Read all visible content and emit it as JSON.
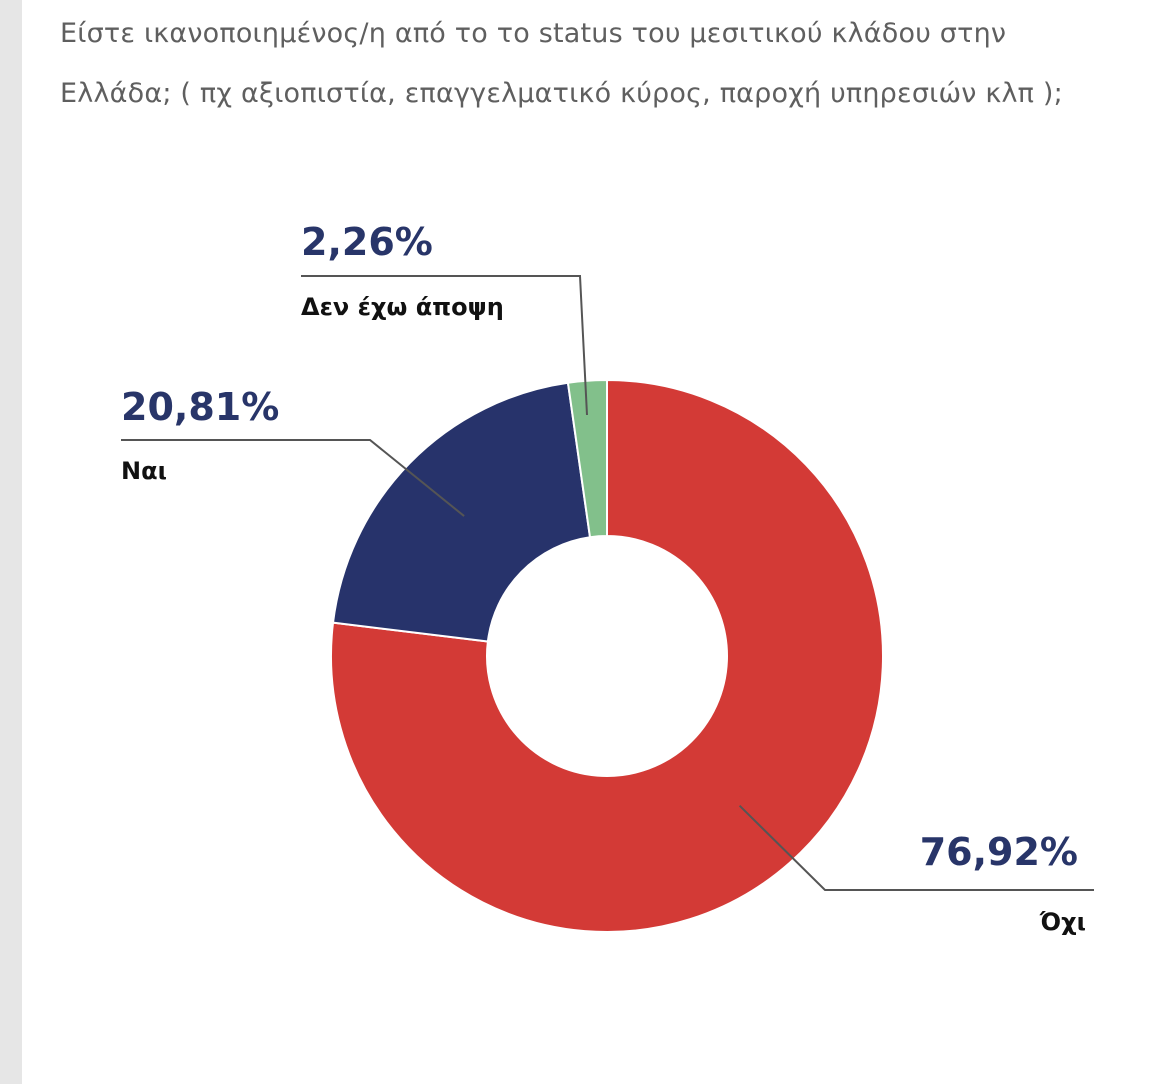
{
  "question": {
    "line1": "Είστε ικανοποιημένος/η από το το status του μεσιτικού κλάδου στην",
    "line2": "Ελλάδα; ( πχ αξιοπιστία, επαγγελματικό κύρος, παροχή υπηρεσιών κλπ );"
  },
  "chart_data": {
    "type": "pie",
    "variant": "donut",
    "categories": [
      "Όχι",
      "Ναι",
      "Δεν έχω άποψη"
    ],
    "values": [
      76.92,
      20.81,
      2.26
    ],
    "value_labels": [
      "76,92%",
      "20,81%",
      "2,26%"
    ],
    "colors": [
      "#d33a36",
      "#27336b",
      "#82c08b"
    ],
    "start": "12 o'clock",
    "direction": "clockwise"
  }
}
